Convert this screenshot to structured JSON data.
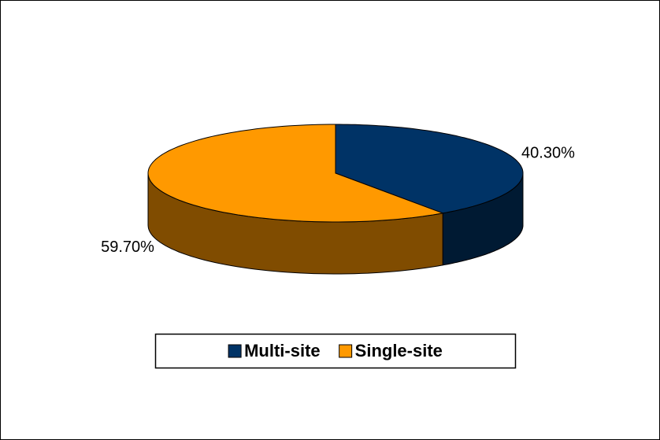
{
  "chart_data": {
    "type": "pie3d",
    "categories": [
      "Multi-site",
      "Single-site"
    ],
    "values": [
      40.3,
      59.7
    ],
    "value_labels": [
      "40.30%",
      "59.70%"
    ],
    "colors": [
      "#003366",
      "#FF9900"
    ],
    "side_colors": [
      "#001a33",
      "#804c00"
    ],
    "legend": "bottom"
  }
}
